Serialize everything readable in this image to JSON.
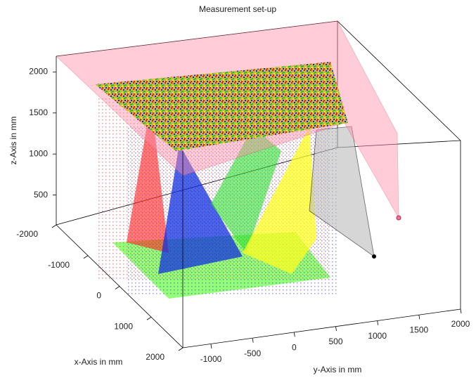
{
  "chart_data": {
    "type": "scene3d",
    "title": "Measurement set-up",
    "xlabel": "x-Axis in mm",
    "ylabel": "y-Axis in mm",
    "zlabel": "z-Axis in mm",
    "xlim": [
      -2000,
      2000
    ],
    "xticks": [
      -2000,
      -1000,
      0,
      1000,
      2000
    ],
    "ylim": [
      -1000,
      2000
    ],
    "yticks": [
      -1000,
      -500,
      0,
      500,
      1000,
      1500,
      2000
    ],
    "zlim": [
      0,
      2200
    ],
    "zticks": [
      500,
      1000,
      1500,
      2000
    ]
  }
}
